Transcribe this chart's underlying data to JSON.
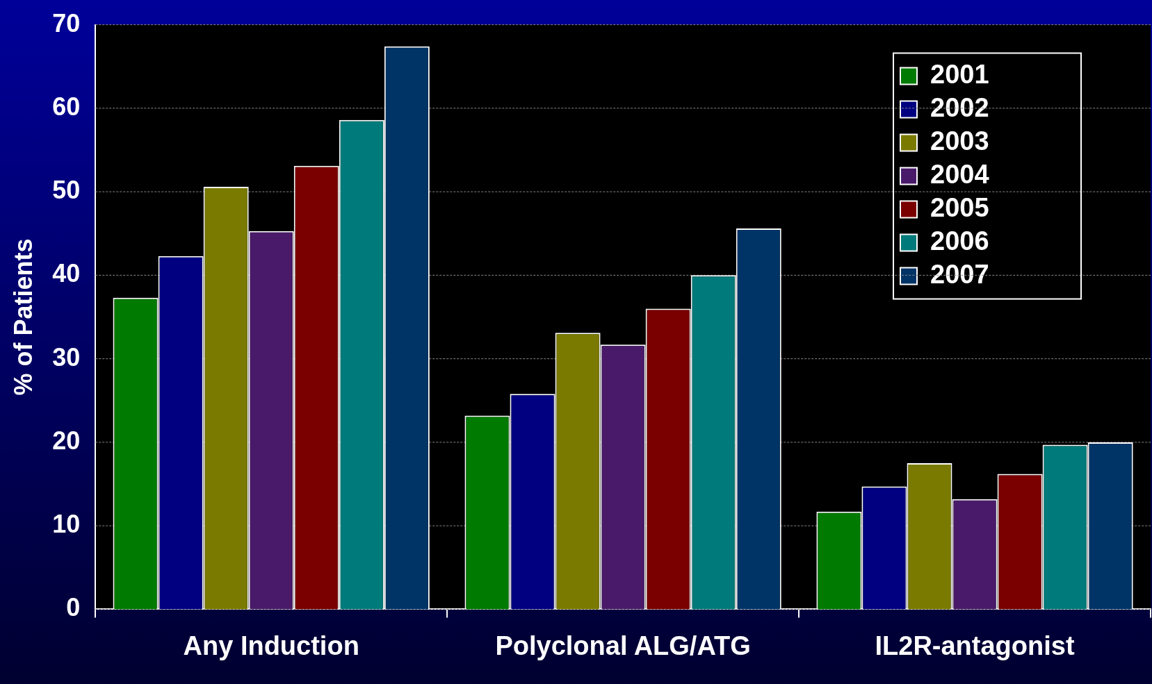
{
  "chart_data": {
    "type": "bar",
    "ylabel": "% of Patients",
    "categories": [
      "Any Induction",
      "Polyclonal ALG/ATG",
      "IL2R-antagonist"
    ],
    "series": [
      {
        "name": "2001",
        "color": "#007a00",
        "values": [
          37.3,
          23.2,
          11.7
        ]
      },
      {
        "name": "2002",
        "color": "#000080",
        "values": [
          42.3,
          25.8,
          14.7
        ]
      },
      {
        "name": "2003",
        "color": "#7a7a00",
        "values": [
          50.6,
          33.1,
          17.5
        ]
      },
      {
        "name": "2004",
        "color": "#4a1a6a",
        "values": [
          45.3,
          31.7,
          13.2
        ]
      },
      {
        "name": "2005",
        "color": "#7a0000",
        "values": [
          53.1,
          36.0,
          16.2
        ]
      },
      {
        "name": "2006",
        "color": "#007a7a",
        "values": [
          58.6,
          40.0,
          19.7
        ]
      },
      {
        "name": "2007",
        "color": "#003366",
        "values": [
          67.4,
          45.6,
          20.0
        ]
      }
    ],
    "ylim": [
      0,
      70
    ],
    "yticks": [
      0,
      10,
      20,
      30,
      40,
      50,
      60,
      70
    ],
    "grid": "y",
    "legend": "top right"
  }
}
